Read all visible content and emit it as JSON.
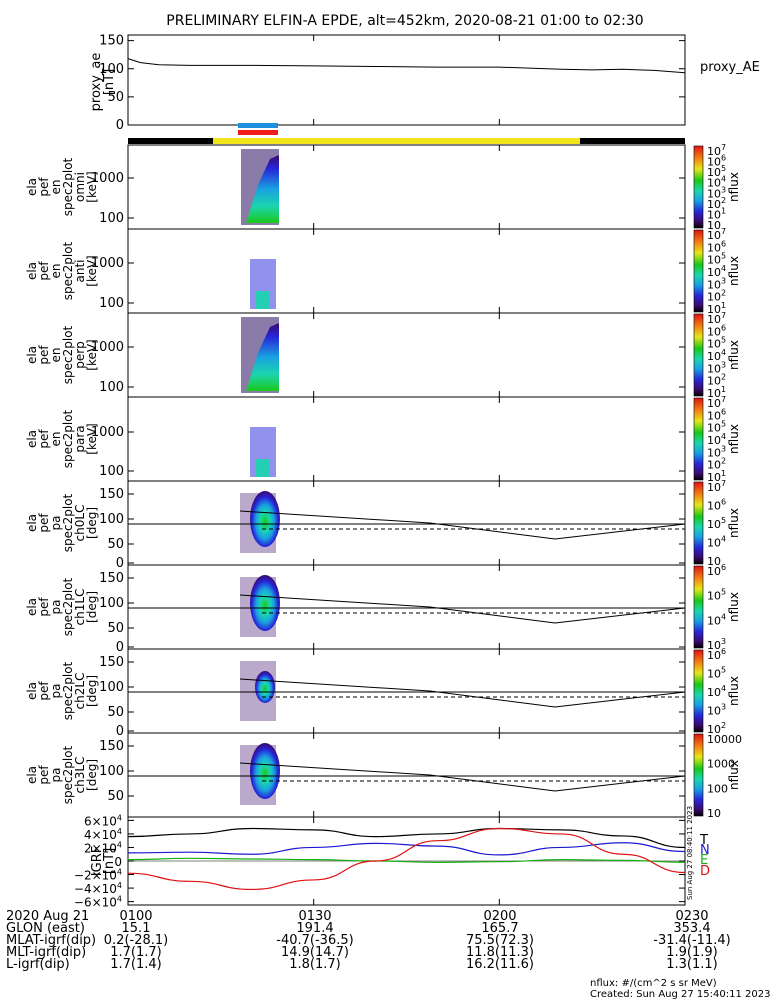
{
  "title": "PRELIMINARY ELFIN-A EPDE, alt=452km, 2020-08-21 01:00 to 02:30",
  "colors": {
    "flag_black": "#000000",
    "flag_yellow": "#f2e41a",
    "bar_blue": "#1f8fe0",
    "bar_red": "#ee1c1c",
    "grf_t": "#000000",
    "grf_n": "#1a1ad0",
    "grf_e": "#14b014",
    "grf_d": "#e01010"
  },
  "chart_data": [
    {
      "type": "line",
      "ylabel_lines": [
        "proxy_ae",
        "[nT]"
      ],
      "legend": "proxy_AE",
      "yticks": [
        "150",
        "100",
        "50",
        "0"
      ],
      "ylim": [
        0,
        160
      ],
      "xlim_min": [
        0,
        90
      ],
      "x_min": [
        0,
        2,
        5,
        10,
        20,
        30,
        40,
        50,
        60,
        70,
        75,
        80,
        85,
        90
      ],
      "values": [
        118,
        111,
        107,
        106,
        106,
        105,
        104,
        103,
        103,
        99,
        98,
        99,
        97,
        93
      ]
    },
    {
      "type": "heatmap",
      "ylabel_lines": [
        "ela",
        "pef",
        "en",
        "spec2plot",
        "omni",
        "[keV]"
      ],
      "yticks": [
        "1000",
        "100"
      ],
      "colorbar_label": "nflux",
      "colorbar_ticks": [
        "10",
        "10",
        "10",
        "10",
        "10",
        "10",
        "10",
        "10"
      ],
      "colorbar_exps": [
        "7",
        "6",
        "5",
        "4",
        "3",
        "2",
        "1",
        ""
      ]
    },
    {
      "type": "heatmap",
      "ylabel_lines": [
        "ela",
        "pef",
        "en",
        "spec2plot",
        "anti",
        "[keV]"
      ],
      "yticks": [
        "1000",
        "100"
      ],
      "colorbar_label": "nflux",
      "colorbar_ticks": [
        "10",
        "10",
        "10",
        "10",
        "10",
        "10",
        "10"
      ],
      "colorbar_exps": [
        "7",
        "6",
        "5",
        "4",
        "3",
        "2",
        "1"
      ]
    },
    {
      "type": "heatmap",
      "ylabel_lines": [
        "ela",
        "pef",
        "en",
        "spec2plot",
        "perp",
        "[keV]"
      ],
      "yticks": [
        "1000",
        "100"
      ],
      "colorbar_label": "nflux",
      "colorbar_ticks": [
        "10",
        "10",
        "10",
        "10",
        "10",
        "10",
        "10"
      ],
      "colorbar_exps": [
        "7",
        "6",
        "5",
        "4",
        "3",
        "2",
        "1"
      ]
    },
    {
      "type": "heatmap",
      "ylabel_lines": [
        "ela",
        "pef",
        "en",
        "spec2plot",
        "para",
        "[keV]"
      ],
      "yticks": [
        "1000",
        "100"
      ],
      "colorbar_label": "nflux",
      "colorbar_ticks": [
        "10",
        "10",
        "10",
        "10",
        "10",
        "10",
        "10"
      ],
      "colorbar_exps": [
        "7",
        "6",
        "5",
        "4",
        "3",
        "2",
        "1"
      ]
    },
    {
      "type": "heatmap",
      "ylabel_lines": [
        "ela",
        "pef",
        "pa",
        "spec2plot",
        "ch0LC",
        "[deg]"
      ],
      "yticks": [
        "150",
        "100",
        "50",
        "0"
      ],
      "colorbar_label": "nflux",
      "colorbar_ticks": [
        "10",
        "10",
        "10",
        "10",
        "10"
      ],
      "colorbar_exps": [
        "7",
        "6",
        "5",
        "4",
        ""
      ]
    },
    {
      "type": "heatmap",
      "ylabel_lines": [
        "ela",
        "pef",
        "pa",
        "spec2plot",
        "ch1LC",
        "[deg]"
      ],
      "yticks": [
        "150",
        "100",
        "50",
        "0"
      ],
      "colorbar_label": "nflux",
      "colorbar_ticks": [
        "10",
        "10",
        "10",
        "10"
      ],
      "colorbar_exps": [
        "6",
        "5",
        "4",
        "3"
      ]
    },
    {
      "type": "heatmap",
      "ylabel_lines": [
        "ela",
        "pef",
        "pa",
        "spec2plot",
        "ch2LC",
        "[deg]"
      ],
      "yticks": [
        "150",
        "100",
        "50",
        "0"
      ],
      "colorbar_label": "nflux",
      "colorbar_ticks": [
        "10",
        "10",
        "10",
        "10",
        "10"
      ],
      "colorbar_exps": [
        "6",
        "5",
        "4",
        "3",
        "2"
      ]
    },
    {
      "type": "heatmap",
      "ylabel_lines": [
        "ela",
        "pef",
        "pa",
        "spec2plot",
        "ch3LC",
        "[deg]"
      ],
      "yticks": [
        "150",
        "100",
        "50"
      ],
      "colorbar_label": "nflux",
      "colorbar_ticks": [
        "10000",
        "1000",
        "100",
        "10"
      ],
      "colorbar_exps": [
        "",
        "",
        "",
        ""
      ]
    },
    {
      "type": "line",
      "ylabel_lines": [
        "IGRF",
        "[nT]"
      ],
      "yticks": [
        "6×10",
        "4×10",
        "2×10",
        "0",
        "−2×10",
        "−4×10",
        "−6×10"
      ],
      "ytick_exps": [
        "4",
        "4",
        "4",
        "",
        "4",
        "4",
        "4"
      ],
      "ylim": [
        -65000,
        65000
      ],
      "legend": [
        "T",
        "N",
        "E",
        "D"
      ],
      "stamp": "Sun Aug 27 08:40:11 2023",
      "x_min": [
        0,
        10,
        20,
        30,
        40,
        50,
        60,
        70,
        80,
        90
      ],
      "series": [
        {
          "name": "T",
          "values": [
            36000,
            40000,
            48000,
            46000,
            36000,
            40000,
            48000,
            46000,
            37000,
            20000
          ]
        },
        {
          "name": "N",
          "values": [
            12000,
            13000,
            10000,
            20000,
            26000,
            22000,
            9000,
            20000,
            27000,
            14000
          ]
        },
        {
          "name": "E",
          "values": [
            2000,
            4000,
            3000,
            2000,
            0,
            -2000,
            -1000,
            2000,
            1000,
            -2000
          ]
        },
        {
          "name": "D",
          "values": [
            -18000,
            -30000,
            -42000,
            -28000,
            0,
            30000,
            48000,
            40000,
            10000,
            -17000
          ]
        }
      ]
    }
  ],
  "xaxis": {
    "ticks": [
      "0100",
      "0130",
      "0200",
      "0230"
    ],
    "rows": [
      {
        "label": "2020 Aug 21",
        "values": [
          "0100",
          "0130",
          "0200",
          "0230"
        ]
      },
      {
        "label": "GLON (east)",
        "values": [
          "15.1",
          "191.4",
          "165.7",
          "353.4"
        ]
      },
      {
        "label": "MLAT-igrf(dip)",
        "values": [
          "0.2(-28.1)",
          "-40.7(-36.5)",
          "75.5(72.3)",
          "-31.4(-11.4)"
        ]
      },
      {
        "label": "MLT-igrf(dip)",
        "values": [
          "1.7(1.7)",
          "14.9(14.7)",
          "11.8(11.3)",
          "1.9(1.9)"
        ]
      },
      {
        "label": "L-igrf(dip)",
        "values": [
          "1.7(1.4)",
          "1.8(1.7)",
          "16.2(11.6)",
          "1.3(1.1)"
        ]
      }
    ]
  },
  "footer": {
    "units": "nflux: #/(cm^2 s sr MeV)",
    "created": "Created: Sun Aug 27 15:40:11 2023"
  }
}
